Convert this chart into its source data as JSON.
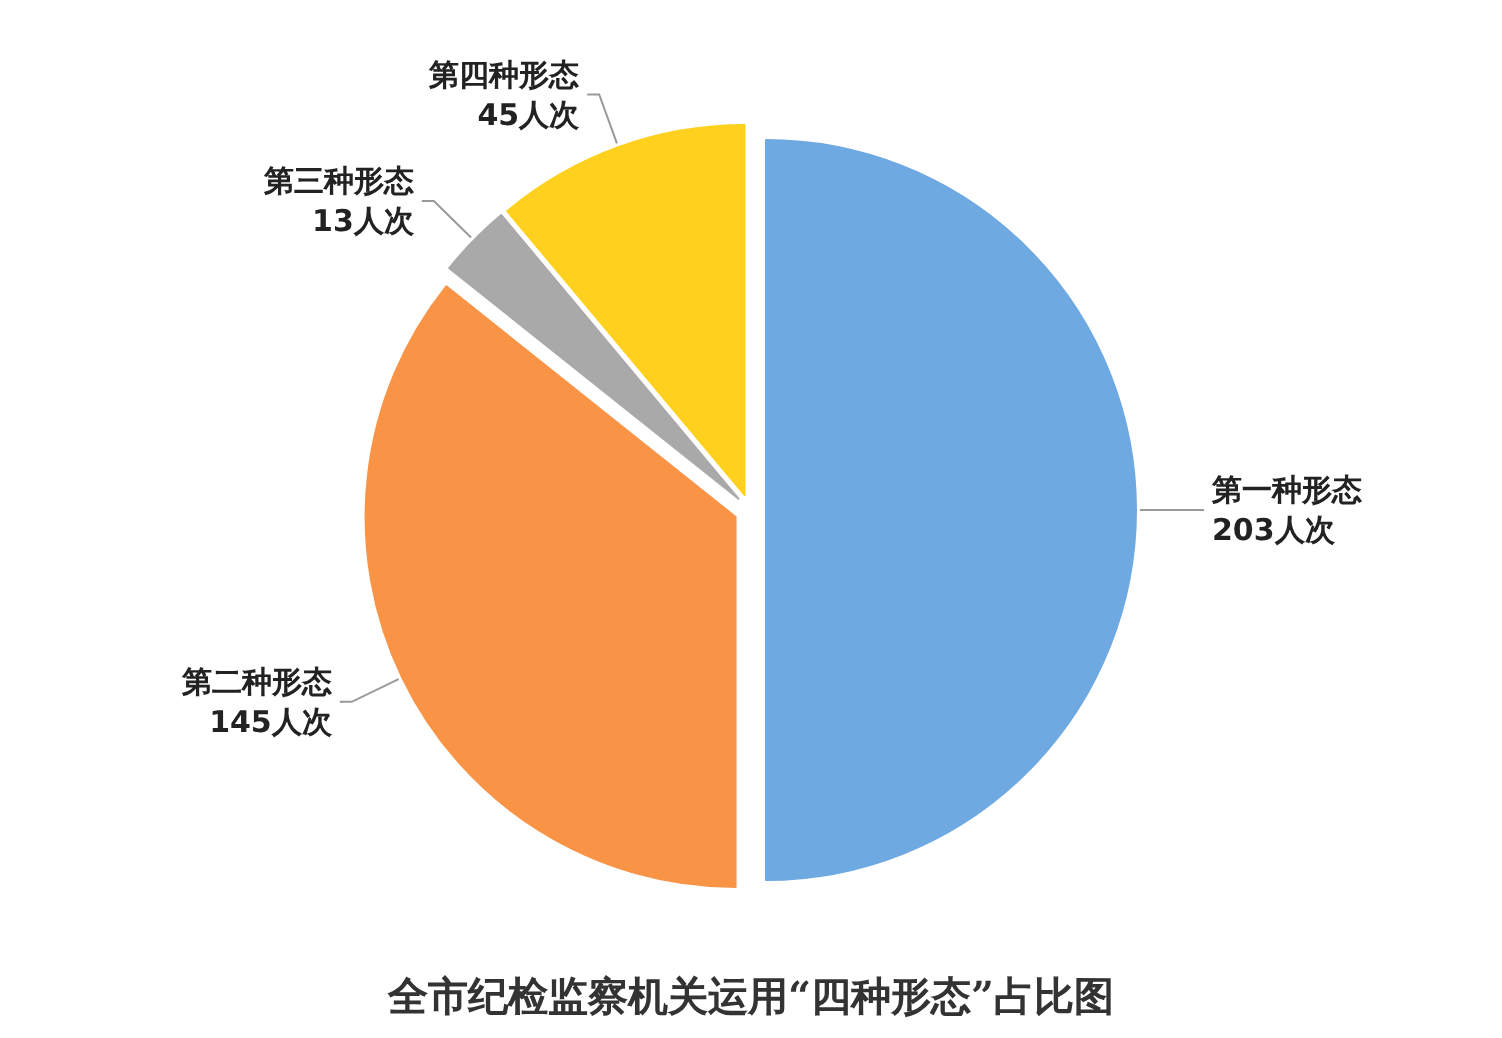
{
  "chart_data": {
    "type": "pie",
    "title": "全市纪检监察机关运用“四种形态”占比图",
    "categories": [
      "第一种形态",
      "第二种形态",
      "第三种形态",
      "第四种形态"
    ],
    "values": [
      203,
      145,
      13,
      45
    ],
    "value_labels": [
      "203人次",
      "145人次",
      "13人次",
      "45人次"
    ],
    "colors": [
      "#6fa9e2",
      "#f99447",
      "#a9a9a9",
      "#ffd11e"
    ]
  }
}
